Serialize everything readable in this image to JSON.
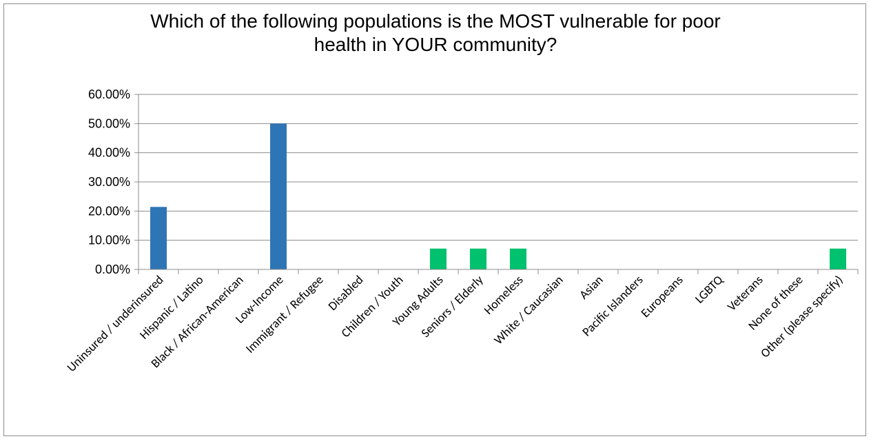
{
  "chart_data": {
    "type": "bar",
    "title_lines": [
      "Which of the following populations is the MOST vulnerable for poor",
      "health in YOUR community?"
    ],
    "categories": [
      "Uninsured / underinsured",
      "Hispanic / Latino",
      "Black / African-American",
      "Low-Income",
      "Immigrant / Refugee",
      "Disabled",
      "Children / Youth",
      "Young Adults",
      "Seniors / Elderly",
      "Homeless",
      "White / Caucasian",
      "Asian",
      "Pacific Islanders",
      "Europeans",
      "LGBTQ",
      "Veterans",
      "None of these",
      "Other (please specify)"
    ],
    "values": [
      21.43,
      0,
      0,
      50.0,
      0,
      0,
      0,
      7.14,
      7.14,
      7.14,
      0,
      0,
      0,
      0,
      0,
      0,
      0,
      7.14
    ],
    "bar_colors": [
      "#2e75b6",
      "#2e75b6",
      "#2e75b6",
      "#2e75b6",
      "#2e75b6",
      "#2e75b6",
      "#2e75b6",
      "#00c16e",
      "#00c16e",
      "#00c16e",
      "#00c16e",
      "#00c16e",
      "#00c16e",
      "#00c16e",
      "#00c16e",
      "#00c16e",
      "#00c16e",
      "#00c16e"
    ],
    "ylim": [
      0,
      60
    ],
    "yticks": [
      0,
      10,
      20,
      30,
      40,
      50,
      60
    ],
    "ytick_labels": [
      "0.00%",
      "10.00%",
      "20.00%",
      "30.00%",
      "40.00%",
      "50.00%",
      "60.00%"
    ],
    "grid": true,
    "legend": false
  }
}
